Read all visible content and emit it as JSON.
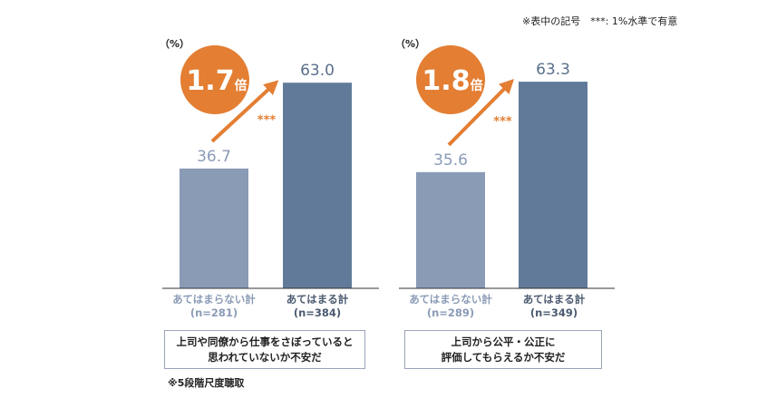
{
  "header_note": "※表中の記号　***: 1%水準で有意",
  "footnote": "※5段階尺度聴取",
  "colors": {
    "bar_light": "#8a9bb6",
    "bar_dark": "#627a99",
    "accent": "#e37e33",
    "baseline": "#333333"
  },
  "chart_data": [
    {
      "type": "bar",
      "unit_label": "（%）",
      "categories": [
        "あてはまらない計",
        "あてはまる計"
      ],
      "category_n": [
        "(n=281)",
        "(n=384)"
      ],
      "values": [
        36.7,
        63.0
      ],
      "value_labels": [
        "36.7",
        "63.0"
      ],
      "ylim": [
        0,
        75
      ],
      "multiplier_label": "1.7",
      "multiplier_suffix": "倍",
      "significance": "***",
      "caption_lines": [
        "上司や同僚から仕事をさぼっていると",
        "思われていないか不安だ"
      ]
    },
    {
      "type": "bar",
      "unit_label": "（%）",
      "categories": [
        "あてはまらない計",
        "あてはまる計"
      ],
      "category_n": [
        "(n=289)",
        "(n=349)"
      ],
      "values": [
        35.6,
        63.3
      ],
      "value_labels": [
        "35.6",
        "63.3"
      ],
      "ylim": [
        0,
        75
      ],
      "multiplier_label": "1.8",
      "multiplier_suffix": "倍",
      "significance": "***",
      "caption_lines": [
        "上司から公平・公正に",
        "評価してもらえるか不安だ"
      ]
    }
  ]
}
